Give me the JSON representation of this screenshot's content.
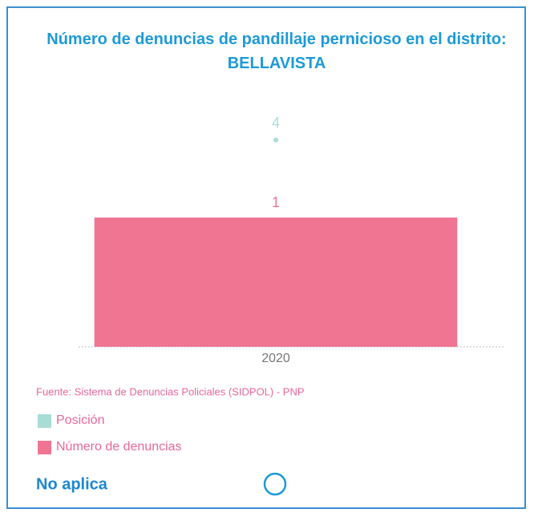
{
  "chart_data": {
    "type": "bar",
    "title": "Número de denuncias de pandillaje pernicioso en el distrito: BELLAVISTA",
    "categories": [
      "2020"
    ],
    "series": [
      {
        "name": "Posición",
        "color": "#a8ddd6",
        "type": "scatter",
        "axis": "y2",
        "values": [
          4
        ]
      },
      {
        "name": "Número de denuncias",
        "color": "#ef7593",
        "type": "bar",
        "values": [
          1
        ]
      }
    ],
    "ylim": [
      0,
      2
    ],
    "y2lim": [
      0,
      5
    ],
    "source": "Fuente: Sistema de Denuncias Policiales (SIDPOL) - PNP",
    "status": "No aplica"
  }
}
